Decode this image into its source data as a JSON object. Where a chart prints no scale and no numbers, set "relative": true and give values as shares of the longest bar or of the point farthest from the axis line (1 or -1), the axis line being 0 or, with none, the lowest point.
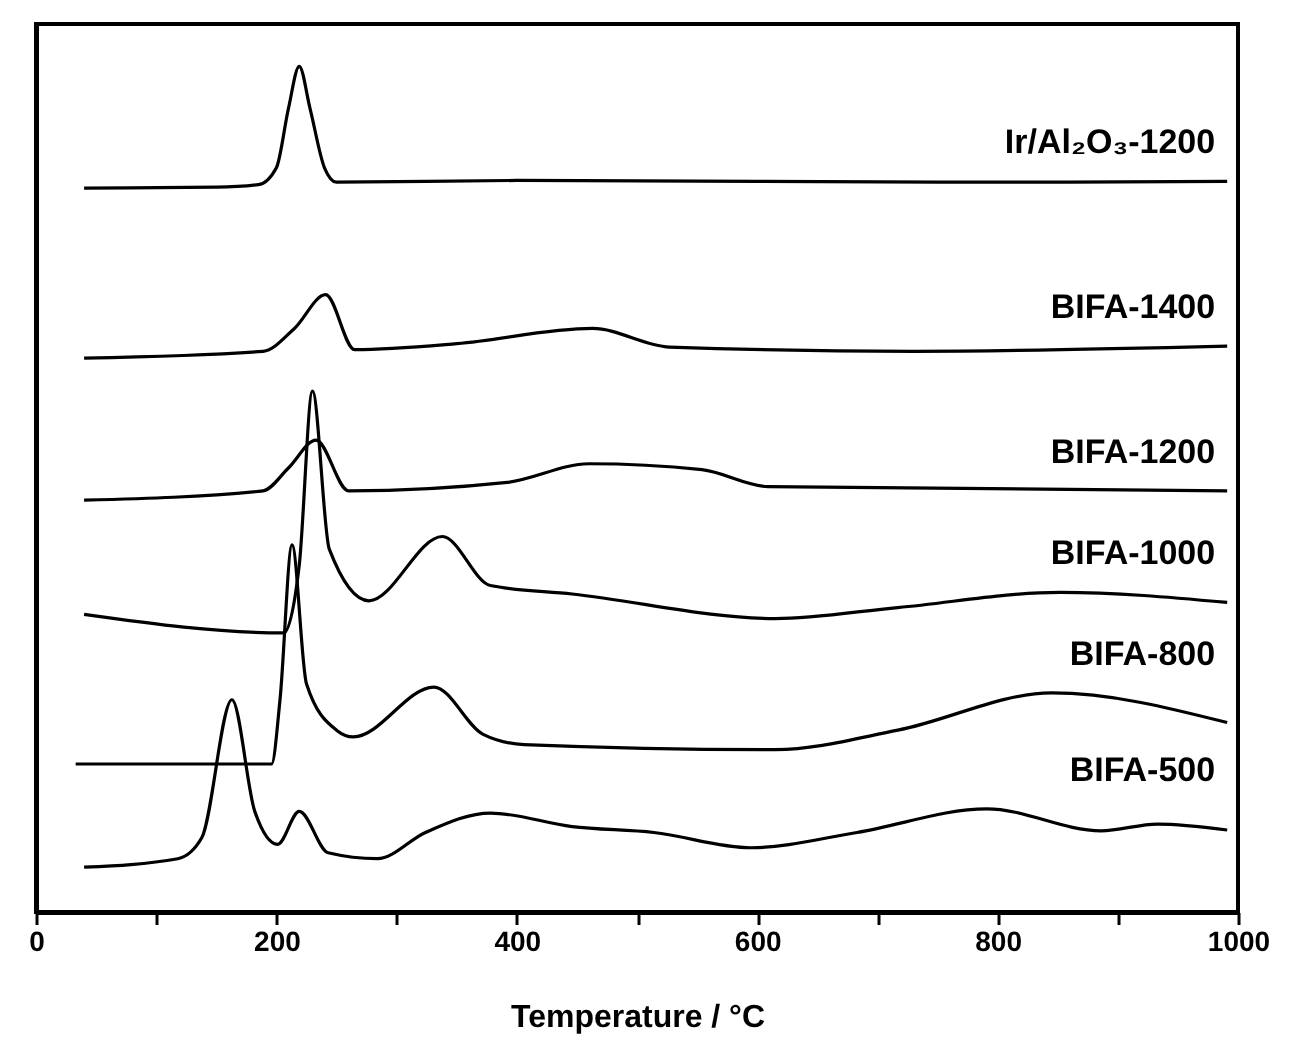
{
  "chart_data": {
    "type": "line",
    "relative": true,
    "xlabel": "Temperature / °C",
    "xlim": [
      0,
      1000
    ],
    "xticks": [
      0,
      {
        "value": 100,
        "label": null
      },
      200,
      {
        "value": 300,
        "label": null
      },
      400,
      {
        "value": 500,
        "label": null
      },
      600,
      {
        "value": 700,
        "label": null
      },
      800,
      {
        "value": 900,
        "label": null
      },
      1000
    ],
    "tick_labels": "x",
    "grid": false,
    "marker": "none",
    "line_style": "solid",
    "series": [
      {
        "name": "Ir/Al₂O₃-1200",
        "color": "#000000",
        "x": [
          40,
          150,
          185,
          200,
          210,
          219,
          228,
          240,
          250,
          400,
          600,
          800,
          991
        ],
        "values": [
          0.856,
          0.857,
          0.86,
          0.88,
          0.95,
          1.0,
          0.95,
          0.88,
          0.863,
          0.865,
          0.864,
          0.863,
          0.864
        ]
      },
      {
        "name": "BIFA-1400",
        "color": "#000000",
        "x": [
          40,
          189,
          215,
          241,
          265,
          350,
          463,
          527,
          730,
          991
        ],
        "values": [
          0.655,
          0.663,
          0.69,
          0.73,
          0.665,
          0.672,
          0.69,
          0.668,
          0.663,
          0.669
        ]
      },
      {
        "name": "BIFA-1200",
        "color": "#000000",
        "x": [
          40,
          189,
          210,
          233,
          260,
          392,
          460,
          554,
          609,
          991
        ],
        "values": [
          0.487,
          0.498,
          0.525,
          0.558,
          0.498,
          0.508,
          0.53,
          0.523,
          0.503,
          0.498
        ]
      },
      {
        "name": "BIFA-1000",
        "color": "#000000",
        "x": [
          40,
          206,
          219,
          230,
          244,
          277,
          338,
          378,
          446,
          615,
          717,
          852,
          991
        ],
        "values": [
          0.352,
          0.33,
          0.41,
          0.616,
          0.429,
          0.368,
          0.444,
          0.386,
          0.376,
          0.347,
          0.36,
          0.378,
          0.366
        ]
      },
      {
        "name": "BIFA-800",
        "color": "#000000",
        "x": [
          33,
          196,
          203,
          213,
          225,
          250,
          264,
          331,
          372,
          406,
          615,
          717,
          845,
          991
        ],
        "values": [
          0.175,
          0.175,
          0.251,
          0.434,
          0.27,
          0.215,
          0.207,
          0.266,
          0.21,
          0.198,
          0.192,
          0.215,
          0.259,
          0.224
        ]
      },
      {
        "name": "BIFA-500",
        "color": "#000000",
        "x": [
          40,
          118,
          138,
          163,
          182,
          201,
          219,
          243,
          284,
          324,
          378,
          446,
          514,
          595,
          683,
          791,
          886,
          933,
          991
        ],
        "values": [
          0.053,
          0.063,
          0.088,
          0.251,
          0.119,
          0.08,
          0.119,
          0.07,
          0.063,
          0.094,
          0.117,
          0.101,
          0.094,
          0.076,
          0.094,
          0.122,
          0.096,
          0.104,
          0.097
        ]
      }
    ]
  }
}
